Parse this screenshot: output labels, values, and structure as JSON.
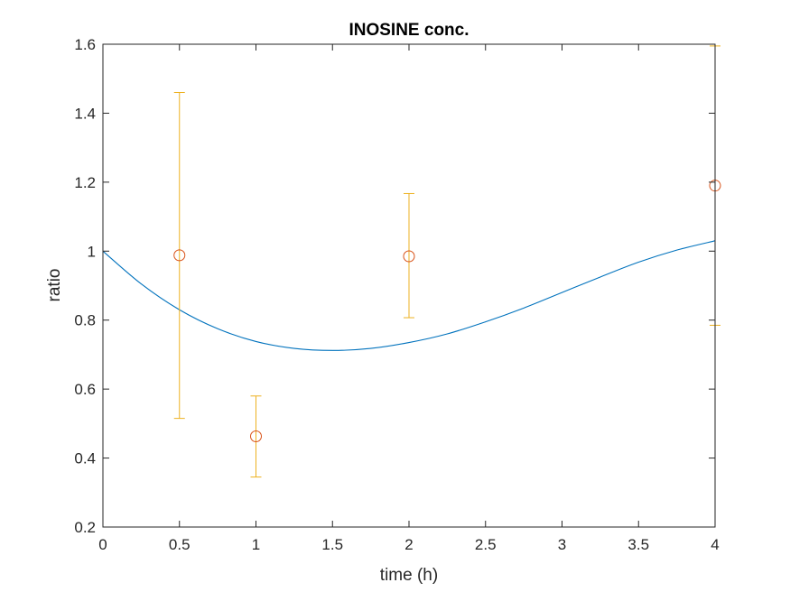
{
  "chart_data": {
    "type": "scatter",
    "title": "INOSINE conc.",
    "xlabel": "time (h)",
    "ylabel": "ratio",
    "xlim": [
      0,
      4
    ],
    "ylim": [
      0.2,
      1.6
    ],
    "x_ticks": [
      "0",
      "0.5",
      "1",
      "1.5",
      "2",
      "2.5",
      "3",
      "3.5",
      "4"
    ],
    "y_ticks": [
      "0.2",
      "0.4",
      "0.6",
      "0.8",
      "1",
      "1.2",
      "1.4",
      "1.6"
    ],
    "grid": false,
    "series": [
      {
        "kind": "line",
        "color": "#0072BD",
        "points": [
          [
            0.0,
            1.0
          ],
          [
            0.25,
            0.905
          ],
          [
            0.5,
            0.83
          ],
          [
            0.75,
            0.775
          ],
          [
            1.0,
            0.738
          ],
          [
            1.25,
            0.718
          ],
          [
            1.5,
            0.712
          ],
          [
            1.75,
            0.718
          ],
          [
            2.0,
            0.735
          ],
          [
            2.25,
            0.76
          ],
          [
            2.5,
            0.795
          ],
          [
            2.75,
            0.835
          ],
          [
            3.0,
            0.88
          ],
          [
            3.25,
            0.925
          ],
          [
            3.5,
            0.968
          ],
          [
            3.75,
            1.003
          ],
          [
            4.0,
            1.03
          ]
        ]
      },
      {
        "kind": "errorbar",
        "color": "#EDB120",
        "x": [
          0.5,
          1,
          2,
          4
        ],
        "lower": [
          0.515,
          0.345,
          0.807,
          0.785
        ],
        "upper": [
          1.46,
          0.58,
          1.167,
          1.595
        ]
      },
      {
        "kind": "markers",
        "marker": "circle",
        "color": "#D95319",
        "x": [
          0.5,
          1,
          2,
          4
        ],
        "y": [
          0.988,
          0.463,
          0.985,
          1.19
        ]
      }
    ]
  }
}
